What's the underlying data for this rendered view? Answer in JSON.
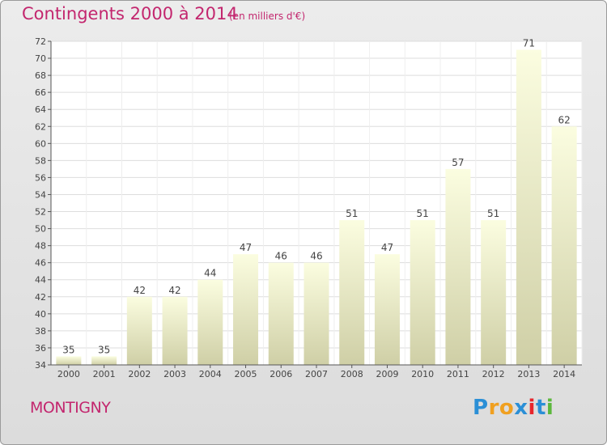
{
  "chart_data": {
    "type": "bar",
    "title": "Contingents 2000 à 2014",
    "subtitle": "(en milliers d'€)",
    "categories": [
      "2000",
      "2001",
      "2002",
      "2003",
      "2004",
      "2005",
      "2006",
      "2007",
      "2008",
      "2009",
      "2010",
      "2011",
      "2012",
      "2013",
      "2014"
    ],
    "values": [
      35,
      35,
      42,
      42,
      44,
      47,
      46,
      46,
      51,
      47,
      51,
      57,
      51,
      71,
      62
    ],
    "ylim": [
      34,
      72
    ],
    "yticks": [
      34,
      36,
      38,
      40,
      42,
      44,
      46,
      48,
      50,
      52,
      54,
      56,
      58,
      60,
      62,
      64,
      66,
      68,
      70,
      72
    ],
    "grid": true,
    "legend": "none"
  },
  "location": "MONTIGNY",
  "brand": {
    "letters": [
      "P",
      "r",
      "o",
      "x",
      "i",
      "t",
      "i"
    ],
    "colors": [
      "#2b8fd6",
      "#f0a020",
      "#f0a020",
      "#2b8fd6",
      "#e8262c",
      "#2b8fd6",
      "#5cb83c"
    ]
  },
  "colors": {
    "title": "#c3266e",
    "bar_top": "#fbfde0",
    "bar_bottom": "#cfcfa6"
  }
}
